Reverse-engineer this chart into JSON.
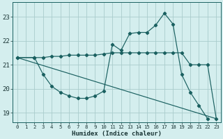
{
  "xlabel": "Humidex (Indice chaleur)",
  "bg_color": "#d4eeee",
  "grid_color": "#aacccc",
  "line_color": "#1a6060",
  "xlim": [
    -0.5,
    23.5
  ],
  "ylim": [
    18.6,
    23.6
  ],
  "yticks": [
    19,
    20,
    21,
    22,
    23
  ],
  "xticks": [
    0,
    1,
    2,
    3,
    4,
    5,
    6,
    7,
    8,
    9,
    10,
    11,
    12,
    13,
    14,
    15,
    16,
    17,
    18,
    19,
    20,
    21,
    22,
    23
  ],
  "series": [
    {
      "x": [
        0,
        23
      ],
      "y": [
        21.3,
        18.75
      ],
      "has_markers": false
    },
    {
      "x": [
        0,
        2,
        3,
        4,
        5,
        6,
        7,
        8,
        9,
        10,
        11,
        12,
        13,
        14,
        15,
        16,
        17,
        18,
        19,
        20,
        21,
        22,
        23
      ],
      "y": [
        21.3,
        21.3,
        21.3,
        21.35,
        21.35,
        21.4,
        21.4,
        21.4,
        21.4,
        21.45,
        21.5,
        21.5,
        21.5,
        21.5,
        21.5,
        21.5,
        21.5,
        21.5,
        21.5,
        21.0,
        21.0,
        21.0,
        18.75
      ],
      "has_markers": true
    },
    {
      "x": [
        0,
        2,
        3,
        4,
        5,
        6,
        7,
        8,
        9,
        10,
        11,
        12,
        13,
        14,
        15,
        16,
        17,
        18,
        19,
        20,
        21,
        22,
        23
      ],
      "y": [
        21.3,
        21.3,
        20.6,
        20.1,
        19.85,
        19.7,
        19.6,
        19.6,
        19.7,
        19.9,
        21.85,
        21.6,
        22.3,
        22.35,
        22.35,
        22.65,
        23.15,
        22.7,
        20.6,
        19.85,
        19.3,
        18.75,
        null
      ],
      "has_markers": true
    }
  ]
}
